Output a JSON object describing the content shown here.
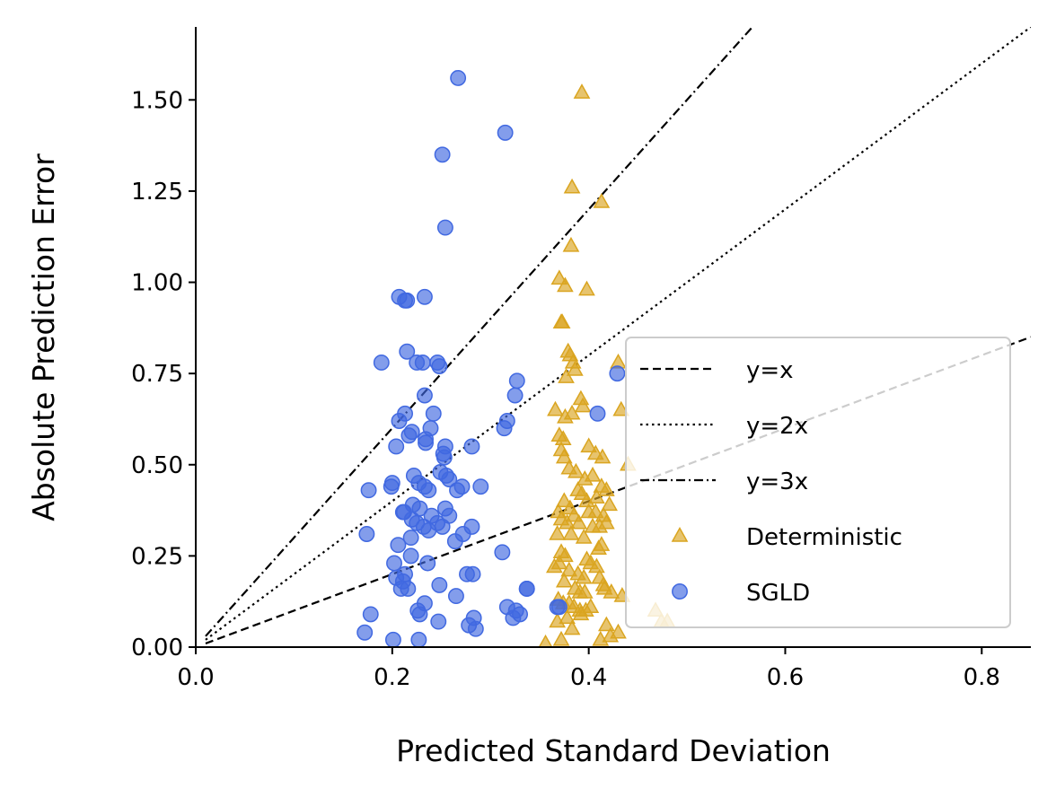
{
  "chart_data": {
    "type": "scatter",
    "title": "",
    "xlabel": "Predicted Standard Deviation",
    "ylabel": "Absolute Prediction Error",
    "xlim": [
      0.0,
      0.85
    ],
    "ylim": [
      0.0,
      1.7
    ],
    "xticks": [
      {
        "value": 0.0,
        "label": "0.0"
      },
      {
        "value": 0.2,
        "label": "0.2"
      },
      {
        "value": 0.4,
        "label": "0.4"
      },
      {
        "value": 0.6,
        "label": "0.6"
      },
      {
        "value": 0.8,
        "label": "0.8"
      }
    ],
    "yticks": [
      {
        "value": 0.0,
        "label": "0.00"
      },
      {
        "value": 0.25,
        "label": "0.25"
      },
      {
        "value": 0.5,
        "label": "0.50"
      },
      {
        "value": 0.75,
        "label": "0.75"
      },
      {
        "value": 1.0,
        "label": "1.00"
      },
      {
        "value": 1.25,
        "label": "1.25"
      },
      {
        "value": 1.5,
        "label": "1.50"
      }
    ],
    "grid": false,
    "legend_position": "lower-right",
    "reference_lines": [
      {
        "name": "y=x",
        "slope": 1,
        "style": "dashed",
        "color": "#000000"
      },
      {
        "name": "y=2x",
        "slope": 2,
        "style": "dotted",
        "color": "#000000"
      },
      {
        "name": "y=3x",
        "slope": 3,
        "style": "dashdot",
        "color": "#000000"
      }
    ],
    "series": [
      {
        "name": "Deterministic",
        "marker": "triangle",
        "color": "#DAA520",
        "points": [
          [
            0.393,
            1.52
          ],
          [
            0.383,
            1.26
          ],
          [
            0.413,
            1.22
          ],
          [
            0.382,
            1.1
          ],
          [
            0.37,
            1.01
          ],
          [
            0.376,
            0.99
          ],
          [
            0.398,
            0.98
          ],
          [
            0.372,
            0.89
          ],
          [
            0.373,
            0.89
          ],
          [
            0.379,
            0.81
          ],
          [
            0.381,
            0.8
          ],
          [
            0.384,
            0.78
          ],
          [
            0.386,
            0.76
          ],
          [
            0.43,
            0.78
          ],
          [
            0.377,
            0.74
          ],
          [
            0.392,
            0.68
          ],
          [
            0.394,
            0.66
          ],
          [
            0.366,
            0.65
          ],
          [
            0.376,
            0.63
          ],
          [
            0.383,
            0.64
          ],
          [
            0.433,
            0.65
          ],
          [
            0.37,
            0.58
          ],
          [
            0.374,
            0.57
          ],
          [
            0.4,
            0.55
          ],
          [
            0.407,
            0.53
          ],
          [
            0.414,
            0.52
          ],
          [
            0.372,
            0.54
          ],
          [
            0.375,
            0.52
          ],
          [
            0.38,
            0.49
          ],
          [
            0.387,
            0.48
          ],
          [
            0.396,
            0.46
          ],
          [
            0.404,
            0.47
          ],
          [
            0.44,
            0.5
          ],
          [
            0.413,
            0.44
          ],
          [
            0.418,
            0.43
          ],
          [
            0.389,
            0.43
          ],
          [
            0.393,
            0.42
          ],
          [
            0.398,
            0.4
          ],
          [
            0.408,
            0.41
          ],
          [
            0.421,
            0.39
          ],
          [
            0.375,
            0.4
          ],
          [
            0.381,
            0.38
          ],
          [
            0.369,
            0.37
          ],
          [
            0.385,
            0.36
          ],
          [
            0.4,
            0.37
          ],
          [
            0.407,
            0.37
          ],
          [
            0.415,
            0.36
          ],
          [
            0.39,
            0.34
          ],
          [
            0.378,
            0.34
          ],
          [
            0.372,
            0.35
          ],
          [
            0.404,
            0.33
          ],
          [
            0.411,
            0.33
          ],
          [
            0.418,
            0.34
          ],
          [
            0.368,
            0.31
          ],
          [
            0.382,
            0.31
          ],
          [
            0.395,
            0.3
          ],
          [
            0.41,
            0.27
          ],
          [
            0.413,
            0.28
          ],
          [
            0.372,
            0.26
          ],
          [
            0.376,
            0.25
          ],
          [
            0.398,
            0.24
          ],
          [
            0.402,
            0.23
          ],
          [
            0.408,
            0.22
          ],
          [
            0.365,
            0.22
          ],
          [
            0.37,
            0.23
          ],
          [
            0.38,
            0.21
          ],
          [
            0.389,
            0.2
          ],
          [
            0.395,
            0.19
          ],
          [
            0.411,
            0.19
          ],
          [
            0.415,
            0.17
          ],
          [
            0.375,
            0.18
          ],
          [
            0.386,
            0.16
          ],
          [
            0.391,
            0.15
          ],
          [
            0.396,
            0.15
          ],
          [
            0.416,
            0.16
          ],
          [
            0.423,
            0.15
          ],
          [
            0.434,
            0.14
          ],
          [
            0.369,
            0.13
          ],
          [
            0.374,
            0.12
          ],
          [
            0.38,
            0.12
          ],
          [
            0.385,
            0.11
          ],
          [
            0.391,
            0.1
          ],
          [
            0.397,
            0.1
          ],
          [
            0.402,
            0.11
          ],
          [
            0.468,
            0.1
          ],
          [
            0.474,
            0.07
          ],
          [
            0.48,
            0.07
          ],
          [
            0.378,
            0.08
          ],
          [
            0.368,
            0.07
          ],
          [
            0.383,
            0.05
          ],
          [
            0.43,
            0.04
          ],
          [
            0.422,
            0.03
          ],
          [
            0.412,
            0.02
          ],
          [
            0.372,
            0.02
          ],
          [
            0.356,
            0.01
          ],
          [
            0.392,
            0.09
          ],
          [
            0.418,
            0.06
          ]
        ]
      },
      {
        "name": "SGLD",
        "marker": "circle",
        "color": "#4169E1",
        "points": [
          [
            0.267,
            1.56
          ],
          [
            0.315,
            1.41
          ],
          [
            0.251,
            1.35
          ],
          [
            0.254,
            1.15
          ],
          [
            0.207,
            0.96
          ],
          [
            0.213,
            0.95
          ],
          [
            0.215,
            0.95
          ],
          [
            0.233,
            0.96
          ],
          [
            0.189,
            0.78
          ],
          [
            0.225,
            0.78
          ],
          [
            0.231,
            0.78
          ],
          [
            0.246,
            0.78
          ],
          [
            0.248,
            0.77
          ],
          [
            0.215,
            0.81
          ],
          [
            0.429,
            0.75
          ],
          [
            0.327,
            0.73
          ],
          [
            0.233,
            0.69
          ],
          [
            0.325,
            0.69
          ],
          [
            0.207,
            0.62
          ],
          [
            0.213,
            0.64
          ],
          [
            0.242,
            0.64
          ],
          [
            0.22,
            0.59
          ],
          [
            0.217,
            0.58
          ],
          [
            0.234,
            0.57
          ],
          [
            0.239,
            0.6
          ],
          [
            0.317,
            0.62
          ],
          [
            0.314,
            0.6
          ],
          [
            0.409,
            0.64
          ],
          [
            0.204,
            0.55
          ],
          [
            0.234,
            0.56
          ],
          [
            0.254,
            0.55
          ],
          [
            0.281,
            0.55
          ],
          [
            0.252,
            0.53
          ],
          [
            0.253,
            0.52
          ],
          [
            0.222,
            0.47
          ],
          [
            0.249,
            0.48
          ],
          [
            0.255,
            0.47
          ],
          [
            0.227,
            0.45
          ],
          [
            0.199,
            0.44
          ],
          [
            0.2,
            0.45
          ],
          [
            0.233,
            0.44
          ],
          [
            0.237,
            0.43
          ],
          [
            0.266,
            0.43
          ],
          [
            0.271,
            0.44
          ],
          [
            0.176,
            0.43
          ],
          [
            0.258,
            0.46
          ],
          [
            0.29,
            0.44
          ],
          [
            0.221,
            0.39
          ],
          [
            0.228,
            0.38
          ],
          [
            0.212,
            0.37
          ],
          [
            0.211,
            0.37
          ],
          [
            0.24,
            0.36
          ],
          [
            0.254,
            0.38
          ],
          [
            0.258,
            0.36
          ],
          [
            0.22,
            0.35
          ],
          [
            0.225,
            0.34
          ],
          [
            0.246,
            0.34
          ],
          [
            0.251,
            0.33
          ],
          [
            0.232,
            0.33
          ],
          [
            0.237,
            0.32
          ],
          [
            0.281,
            0.33
          ],
          [
            0.272,
            0.31
          ],
          [
            0.174,
            0.31
          ],
          [
            0.219,
            0.3
          ],
          [
            0.206,
            0.28
          ],
          [
            0.264,
            0.29
          ],
          [
            0.312,
            0.26
          ],
          [
            0.219,
            0.25
          ],
          [
            0.236,
            0.23
          ],
          [
            0.202,
            0.23
          ],
          [
            0.213,
            0.2
          ],
          [
            0.211,
            0.18
          ],
          [
            0.216,
            0.16
          ],
          [
            0.209,
            0.16
          ],
          [
            0.204,
            0.19
          ],
          [
            0.282,
            0.2
          ],
          [
            0.276,
            0.2
          ],
          [
            0.248,
            0.17
          ],
          [
            0.265,
            0.14
          ],
          [
            0.233,
            0.12
          ],
          [
            0.226,
            0.1
          ],
          [
            0.228,
            0.09
          ],
          [
            0.178,
            0.09
          ],
          [
            0.247,
            0.07
          ],
          [
            0.278,
            0.06
          ],
          [
            0.283,
            0.08
          ],
          [
            0.285,
            0.05
          ],
          [
            0.317,
            0.11
          ],
          [
            0.326,
            0.1
          ],
          [
            0.33,
            0.09
          ],
          [
            0.337,
            0.16
          ],
          [
            0.323,
            0.08
          ],
          [
            0.37,
            0.11
          ],
          [
            0.172,
            0.04
          ],
          [
            0.201,
            0.02
          ],
          [
            0.227,
            0.02
          ],
          [
            0.337,
            0.16
          ],
          [
            0.368,
            0.11
          ]
        ]
      }
    ]
  }
}
